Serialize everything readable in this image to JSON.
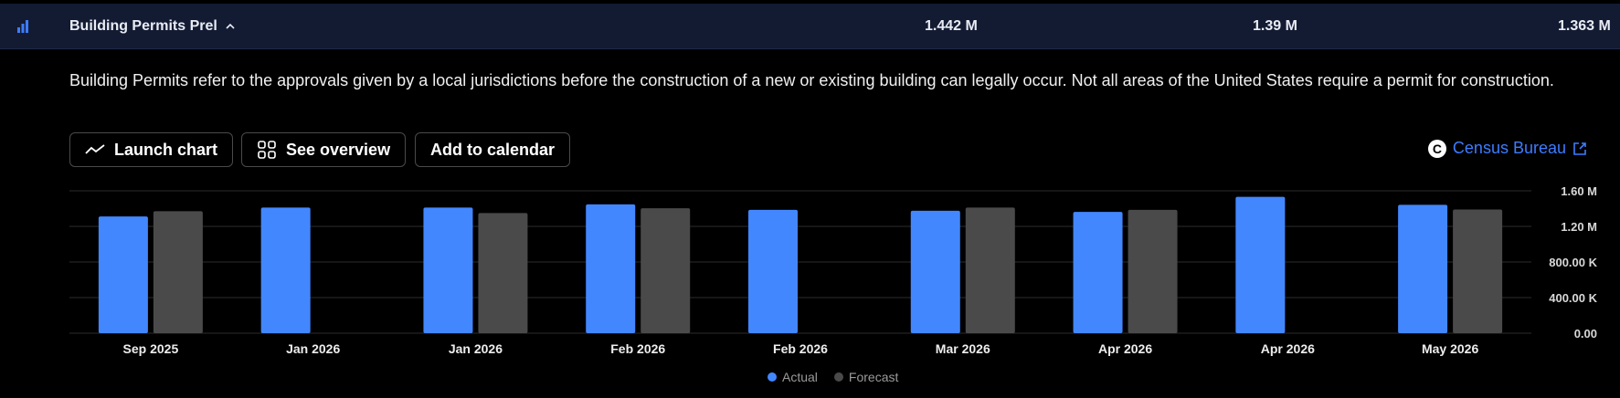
{
  "header": {
    "title": "Building Permits Prel",
    "values": [
      "1.442 M",
      "1.39 M",
      "1.363 M"
    ]
  },
  "description": "Building Permits refer to the approvals given by a local jurisdictions before the construction of a new or existing building can legally occur. Not all areas of the United States require a permit for construction.",
  "buttons": {
    "launch_chart": "Launch chart",
    "see_overview": "See overview",
    "add_calendar": "Add to calendar"
  },
  "source": {
    "badge": "C",
    "label": "Census Bureau"
  },
  "legend": {
    "actual": "Actual",
    "forecast": "Forecast"
  },
  "colors": {
    "actual": "#4387ff",
    "forecast": "#4a4a4a",
    "header_bg": "#131b33",
    "link": "#3d7cff"
  },
  "icons": [
    "bar-chart-icon",
    "chevron-up-icon",
    "trend-line-icon",
    "grid-icon",
    "external-link-icon"
  ],
  "chart_data": {
    "type": "bar",
    "categories": [
      "Sep 2025",
      "Jan 2026",
      "Jan 2026",
      "Feb 2026",
      "Feb 2026",
      "Mar 2026",
      "Apr 2026",
      "Apr 2026",
      "May 2026"
    ],
    "series": [
      {
        "name": "Actual",
        "values": [
          1.312,
          1.412,
          1.411,
          1.448,
          1.386,
          1.376,
          1.363,
          1.532,
          1.442
        ]
      },
      {
        "name": "Forecast",
        "values": [
          1.37,
          null,
          1.35,
          1.404,
          null,
          1.412,
          1.386,
          null,
          1.39
        ]
      }
    ],
    "yticks": [
      "1.60 M",
      "1.20 M",
      "800.00 K",
      "400.00 K",
      "0.00"
    ],
    "ylim": [
      0,
      1.6
    ],
    "grid": true,
    "legend": "bottom-center"
  }
}
